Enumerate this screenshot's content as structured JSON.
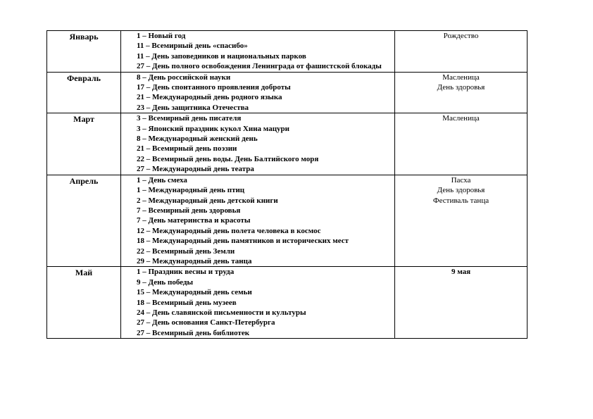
{
  "months": [
    {
      "name": "Январь",
      "events": [
        "1 – Новый год",
        "11 – Всемирный день «спасибо»",
        "11 – День заповедников и национальных парков",
        "27 – День полного освобождения Ленинграда от фашистской блокады"
      ],
      "notes": [
        "Рождество"
      ]
    },
    {
      "name": "Февраль",
      "events": [
        "8 – День российской науки",
        "17 – День спонтанного проявления доброты",
        "21 – Международный день родного языка",
        "23 – День защитника Отечества"
      ],
      "notes": [
        "Масленица",
        "День здоровья"
      ]
    },
    {
      "name": "Март",
      "events": [
        "3 – Всемирный день писателя",
        "3 – Японский праздник кукол Хина мацури",
        "8 – Международный женский день",
        "21 – Всемирный день поэзии",
        "22 – Всемирный день воды. День Балтийского моря",
        "27 – Международный день театра"
      ],
      "notes": [
        "Масленица"
      ]
    },
    {
      "name": "Апрель",
      "events": [
        "1 – День смеха",
        "1 – Международный день птиц",
        "2 – Международный день детской книги",
        "7 – Всемирный день здоровья",
        "7 – День материнства и красоты",
        "12 – Международный день полета человека в космос",
        "18 – Международный день памятников и исторических мест",
        "22 – Всемирный день Земли",
        "29 – Международный день танца"
      ],
      "notes": [
        "Пасха",
        "День здоровья",
        "Фестиваль танца"
      ]
    },
    {
      "name": "Май",
      "events": [
        "1 – Праздник весны и труда",
        "9 – День победы",
        "15 – Международный день семьи",
        "18 – Всемирный день музеев",
        "24 – День славянской письменности и культуры",
        "27 – День основания Санкт-Петербурга",
        "27 – Всемирный день библиотек"
      ],
      "notes": [
        "9 мая"
      ]
    }
  ]
}
